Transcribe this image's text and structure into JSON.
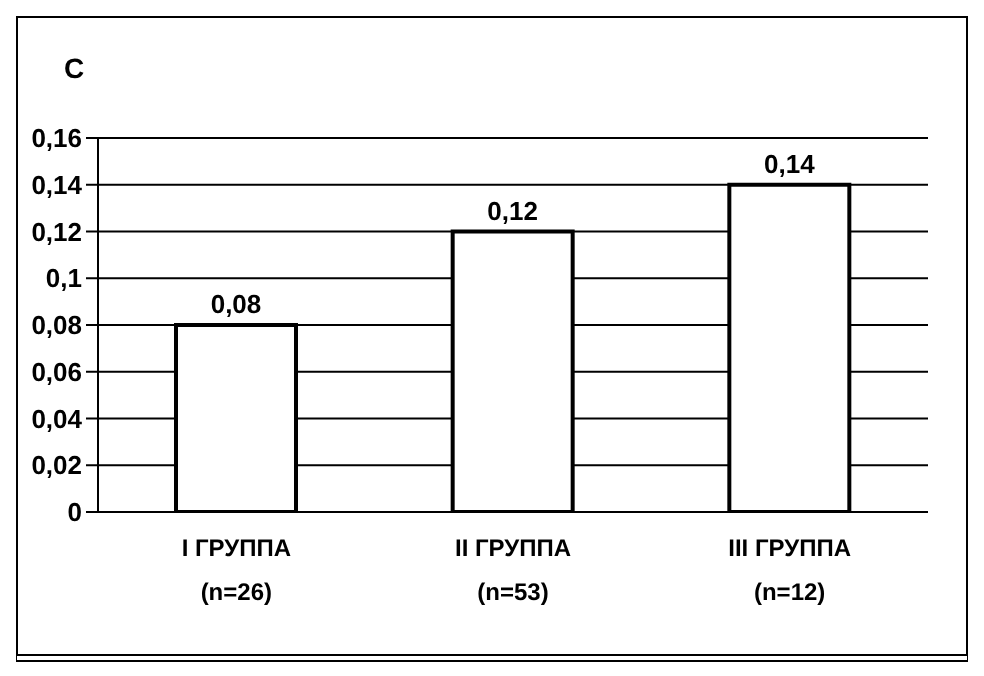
{
  "chart_data": {
    "type": "bar",
    "ylabel": "C",
    "categories": [
      "I ГРУППА\n(n=26)",
      "II ГРУППА\n(n=53)",
      "III ГРУППА\n(n=12)"
    ],
    "values": [
      0.08,
      0.12,
      0.14
    ],
    "color": "#ffffff",
    "value_labels": [
      "0,08",
      "0,12",
      "0,14"
    ],
    "ylim": [
      0,
      0.16
    ],
    "yticks": [
      {
        "value": 0,
        "label": "0"
      },
      {
        "value": 0.02,
        "label": "0,02"
      },
      {
        "value": 0.04,
        "label": "0,04"
      },
      {
        "value": 0.06,
        "label": "0,06"
      },
      {
        "value": 0.08,
        "label": "0,08"
      },
      {
        "value": 0.1,
        "label": "0,1"
      },
      {
        "value": 0.12,
        "label": "0,12"
      },
      {
        "value": 0.14,
        "label": "0,14"
      },
      {
        "value": 0.16,
        "label": "0,16"
      }
    ],
    "grid": "y",
    "legend": false
  }
}
